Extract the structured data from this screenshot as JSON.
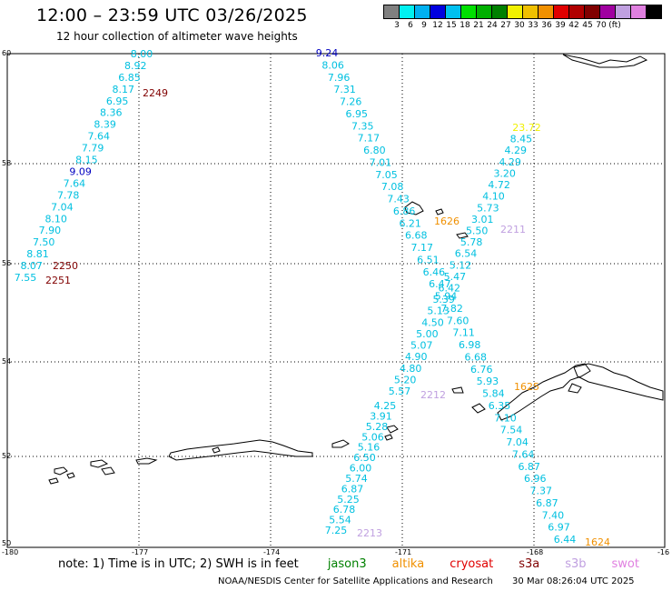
{
  "title": "12:00 – 23:59 UTC 03/26/2025",
  "subtitle": "12 hour collection of altimeter wave heights",
  "legend": {
    "colors": [
      "#808080",
      "#00f0f0",
      "#00b0f0",
      "#0000e0",
      "#00c0f0",
      "#00e000",
      "#00b000",
      "#008000",
      "#f0f000",
      "#f0c000",
      "#f09000",
      "#e00000",
      "#b00000",
      "#800000",
      "#a000a0",
      "#c0a0e0",
      "#e080e0",
      "#000000"
    ],
    "ticks": [
      "3",
      "6",
      "9",
      "12",
      "15",
      "18",
      "21",
      "24",
      "27",
      "30",
      "33",
      "36",
      "39",
      "42",
      "45",
      "70",
      "(ft)"
    ]
  },
  "lat_labels": [
    "60",
    "58",
    "56",
    "54",
    "52",
    "50"
  ],
  "lon_labels": [
    "-180",
    "-177",
    "-174",
    "-171",
    "-168",
    "-16"
  ],
  "passes": [
    {
      "id": "2249",
      "color": "#800000",
      "points": [
        {
          "v": "8.00",
          "c": "#00c0e0"
        },
        {
          "v": "8.92",
          "c": "#00c0e0"
        },
        {
          "v": "6.85",
          "c": "#00c0e0"
        },
        {
          "v": "8.17",
          "c": "#00c0e0"
        },
        {
          "v": "6.95",
          "c": "#00c0e0"
        },
        {
          "v": "8.36",
          "c": "#00c0e0"
        },
        {
          "v": "8.39",
          "c": "#00c0e0"
        },
        {
          "v": "7.64",
          "c": "#00c0e0"
        },
        {
          "v": "7.79",
          "c": "#00c0e0"
        },
        {
          "v": "8.15",
          "c": "#00c0e0"
        },
        {
          "v": "9.09",
          "c": "#0000c0"
        },
        {
          "v": "7.64",
          "c": "#00c0e0"
        },
        {
          "v": "7.78",
          "c": "#00c0e0"
        },
        {
          "v": "7.04",
          "c": "#00c0e0"
        },
        {
          "v": "8.10",
          "c": "#00c0e0"
        },
        {
          "v": "7.90",
          "c": "#00c0e0"
        },
        {
          "v": "7.50",
          "c": "#00c0e0"
        },
        {
          "v": "8.81",
          "c": "#00c0e0"
        },
        {
          "v": "8.07",
          "c": "#00c0e0"
        },
        {
          "v": "7.55",
          "c": "#00c0e0"
        }
      ]
    },
    {
      "id": "2250",
      "color": "#800000"
    },
    {
      "id": "2251",
      "color": "#800000"
    },
    {
      "id": "1626",
      "color": "#f09000",
      "points": [
        {
          "v": "9.24",
          "c": "#0000c0"
        },
        {
          "v": "8.06",
          "c": "#00c0e0"
        },
        {
          "v": "7.96",
          "c": "#00c0e0"
        },
        {
          "v": "7.31",
          "c": "#00c0e0"
        },
        {
          "v": "7.26",
          "c": "#00c0e0"
        },
        {
          "v": "6.95",
          "c": "#00c0e0"
        },
        {
          "v": "7.35",
          "c": "#00c0e0"
        },
        {
          "v": "7.17",
          "c": "#00c0e0"
        },
        {
          "v": "6.80",
          "c": "#00c0e0"
        },
        {
          "v": "7.01",
          "c": "#00c0e0"
        },
        {
          "v": "7.05",
          "c": "#00c0e0"
        },
        {
          "v": "7.08",
          "c": "#00c0e0"
        },
        {
          "v": "7.43",
          "c": "#00c0e0"
        },
        {
          "v": "6.86",
          "c": "#00c0e0"
        },
        {
          "v": "6.21",
          "c": "#00c0e0"
        },
        {
          "v": "6.68",
          "c": "#00c0e0"
        },
        {
          "v": "7.17",
          "c": "#00c0e0"
        },
        {
          "v": "6.51",
          "c": "#00c0e0"
        },
        {
          "v": "6.46",
          "c": "#00c0e0"
        },
        {
          "v": "6.47",
          "c": "#00c0e0"
        },
        {
          "v": "5.94",
          "c": "#00c0e0"
        },
        {
          "v": "7.82",
          "c": "#00c0e0"
        },
        {
          "v": "7.60",
          "c": "#00c0e0"
        },
        {
          "v": "7.11",
          "c": "#00c0e0"
        },
        {
          "v": "6.98",
          "c": "#00c0e0"
        },
        {
          "v": "6.68",
          "c": "#00c0e0"
        },
        {
          "v": "6.76",
          "c": "#00c0e0"
        },
        {
          "v": "5.93",
          "c": "#00c0e0"
        },
        {
          "v": "5.84",
          "c": "#00c0e0"
        },
        {
          "v": "6.35",
          "c": "#00c0e0"
        },
        {
          "v": "7.10",
          "c": "#00c0e0"
        },
        {
          "v": "7.54",
          "c": "#00c0e0"
        },
        {
          "v": "7.04",
          "c": "#00c0e0"
        },
        {
          "v": "7.64",
          "c": "#00c0e0"
        },
        {
          "v": "6.87",
          "c": "#00c0e0"
        },
        {
          "v": "6.96",
          "c": "#00c0e0"
        },
        {
          "v": "7.37",
          "c": "#00c0e0"
        },
        {
          "v": "6.87",
          "c": "#00c0e0"
        },
        {
          "v": "7.40",
          "c": "#00c0e0"
        },
        {
          "v": "6.97",
          "c": "#00c0e0"
        },
        {
          "v": "6.44",
          "c": "#00c0e0"
        }
      ]
    },
    {
      "id": "2211",
      "color": "#c0a0e0",
      "points": [
        {
          "v": "23.72",
          "c": "#f0f000"
        },
        {
          "v": "8.45",
          "c": "#00c0e0"
        },
        {
          "v": "4.29",
          "c": "#00c0e0"
        },
        {
          "v": "4.29",
          "c": "#00c0e0"
        },
        {
          "v": "3.20",
          "c": "#00c0e0"
        },
        {
          "v": "4.72",
          "c": "#00c0e0"
        },
        {
          "v": "4.10",
          "c": "#00c0e0"
        },
        {
          "v": "5.73",
          "c": "#00c0e0"
        },
        {
          "v": "3.01",
          "c": "#00c0e0"
        },
        {
          "v": "5.50",
          "c": "#00c0e0"
        },
        {
          "v": "5.78",
          "c": "#00c0e0"
        },
        {
          "v": "6.54",
          "c": "#00c0e0"
        },
        {
          "v": "5.12",
          "c": "#00c0e0"
        },
        {
          "v": "5.47",
          "c": "#00c0e0"
        },
        {
          "v": "6.42",
          "c": "#00c0e0"
        },
        {
          "v": "5.39",
          "c": "#00c0e0"
        },
        {
          "v": "5.13",
          "c": "#00c0e0"
        },
        {
          "v": "4.50",
          "c": "#00c0e0"
        },
        {
          "v": "5.00",
          "c": "#00c0e0"
        },
        {
          "v": "5.07",
          "c": "#00c0e0"
        },
        {
          "v": "4.90",
          "c": "#00c0e0"
        },
        {
          "v": "4.80",
          "c": "#00c0e0"
        },
        {
          "v": "5.20",
          "c": "#00c0e0"
        },
        {
          "v": "5.57",
          "c": "#00c0e0"
        }
      ]
    },
    {
      "id": "2212",
      "color": "#c0a0e0",
      "points": [
        {
          "v": "4.25",
          "c": "#00c0e0"
        },
        {
          "v": "3.91",
          "c": "#00c0e0"
        },
        {
          "v": "5.28",
          "c": "#00c0e0"
        },
        {
          "v": "5.06",
          "c": "#00c0e0"
        },
        {
          "v": "5.16",
          "c": "#00c0e0"
        },
        {
          "v": "6.50",
          "c": "#00c0e0"
        },
        {
          "v": "6.00",
          "c": "#00c0e0"
        },
        {
          "v": "5.74",
          "c": "#00c0e0"
        },
        {
          "v": "6.87",
          "c": "#00c0e0"
        },
        {
          "v": "5.25",
          "c": "#00c0e0"
        },
        {
          "v": "6.78",
          "c": "#00c0e0"
        },
        {
          "v": "5.54",
          "c": "#00c0e0"
        },
        {
          "v": "7.25",
          "c": "#00c0e0"
        }
      ]
    },
    {
      "id": "2213",
      "color": "#c0a0e0"
    },
    {
      "id": "1625",
      "color": "#f09000"
    },
    {
      "id": "1624",
      "color": "#f09000"
    }
  ],
  "note": {
    "prefix": "note:  1) Time is in UTC;  2) SWH is in feet",
    "missions": [
      {
        "name": "jason3",
        "color": "#008000"
      },
      {
        "name": "altika",
        "color": "#f09000"
      },
      {
        "name": "cryosat",
        "color": "#e00000"
      },
      {
        "name": "s3a",
        "color": "#800000"
      },
      {
        "name": "s3b",
        "color": "#c0a0e0"
      },
      {
        "name": "swot",
        "color": "#e080e0"
      }
    ]
  },
  "footer": {
    "credit": "NOAA/NESDIS Center for Satellite Applications and Research",
    "timestamp": "30 Mar 08:26:04 UTC 2025"
  }
}
